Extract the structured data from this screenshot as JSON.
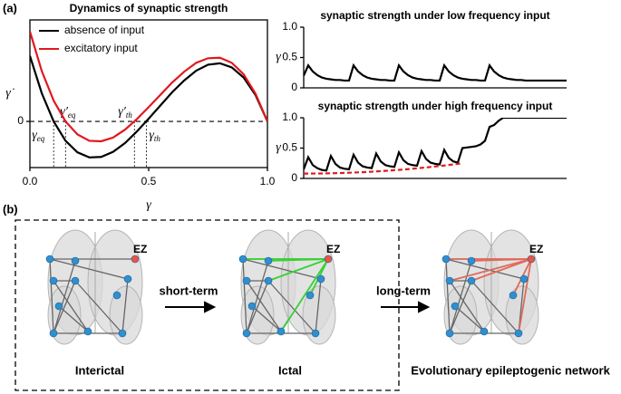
{
  "panel_a_label": "(a)",
  "chart_data": [
    {
      "type": "line",
      "title": "Dynamics of synaptic strength",
      "x_label": "γ",
      "y_label": "γ̇",
      "x": [
        0,
        0.05,
        0.1,
        0.15,
        0.2,
        0.25,
        0.3,
        0.35,
        0.4,
        0.45,
        0.5,
        0.55,
        0.6,
        0.65,
        0.7,
        0.75,
        0.8,
        0.85,
        0.9,
        0.95,
        1
      ],
      "series": [
        {
          "name": "absence of input",
          "color": "#000000",
          "values": [
            1.42,
            0.61,
            0,
            -0.42,
            -0.67,
            -0.78,
            -0.77,
            -0.66,
            -0.47,
            -0.22,
            0.06,
            0.35,
            0.64,
            0.89,
            1.1,
            1.23,
            1.26,
            1.17,
            0.95,
            0.57,
            0
          ]
        },
        {
          "name": "excitatory input",
          "color": "#e0191e",
          "values": [
            1.95,
            1.09,
            0.45,
            0,
            -0.28,
            -0.42,
            -0.43,
            -0.35,
            -0.18,
            0.05,
            0.31,
            0.58,
            0.85,
            1.08,
            1.27,
            1.37,
            1.38,
            1.27,
            1.02,
            0.6,
            0
          ]
        }
      ],
      "xlim": [
        0,
        1
      ],
      "ylim": [
        -1,
        2.2
      ],
      "xticks": [
        {
          "value": 0,
          "label": "0.0"
        },
        0.5,
        {
          "value": 1,
          "label": "1.0"
        }
      ],
      "yticks": [
        0
      ],
      "grid": true,
      "legend": "upper left",
      "annotations": [
        {
          "symbol": "γ",
          "subscript": "eq",
          "x": 0.1
        },
        {
          "symbol": "γ′",
          "subscript": "eq",
          "x": 0.15
        },
        {
          "symbol": "γ′",
          "subscript": "th",
          "x": 0.44
        },
        {
          "symbol": "γ",
          "subscript": "th",
          "x": 0.49
        }
      ]
    },
    {
      "type": "line",
      "title": "synaptic strength under low frequency input",
      "y_label": "γ",
      "x": [
        0,
        1,
        2,
        3,
        4,
        5,
        6,
        7,
        8,
        9,
        10,
        11,
        12,
        13,
        14,
        15,
        16,
        17,
        18,
        19,
        20,
        21,
        22,
        23,
        24,
        25,
        26,
        27,
        28,
        29,
        30,
        31,
        32,
        33,
        34,
        35,
        36,
        37,
        38,
        39,
        40,
        41,
        42,
        43,
        44,
        45,
        46,
        47,
        48,
        49,
        50,
        51,
        52,
        53,
        54,
        55,
        56,
        57,
        58
      ],
      "series": [
        {
          "color": "#000000",
          "values": [
            0.2,
            0.37,
            0.27,
            0.21,
            0.17,
            0.15,
            0.14,
            0.13,
            0.13,
            0.12,
            0.12,
            0.37,
            0.27,
            0.21,
            0.17,
            0.15,
            0.14,
            0.13,
            0.13,
            0.12,
            0.12,
            0.37,
            0.27,
            0.21,
            0.17,
            0.15,
            0.14,
            0.13,
            0.13,
            0.12,
            0.12,
            0.37,
            0.27,
            0.21,
            0.17,
            0.15,
            0.14,
            0.13,
            0.13,
            0.12,
            0.12,
            0.37,
            0.27,
            0.21,
            0.17,
            0.15,
            0.14,
            0.13,
            0.13,
            0.12,
            0.12,
            0.12,
            0.12,
            0.12,
            0.12,
            0.12,
            0.12,
            0.12,
            0.12
          ]
        }
      ],
      "xlim": [
        0,
        58
      ],
      "ylim": [
        0,
        1
      ],
      "yticks": [
        0,
        0.5,
        {
          "value": 1,
          "label": "1.0"
        }
      ],
      "grid": false
    },
    {
      "type": "line",
      "title": "synaptic strength under high frequency input",
      "y_label": "γ",
      "x": [
        0,
        1,
        2,
        3,
        4,
        5,
        6,
        7,
        8,
        9,
        10,
        11,
        12,
        13,
        14,
        15,
        16,
        17,
        18,
        19,
        20,
        21,
        22,
        23,
        24,
        25,
        26,
        27,
        28,
        29,
        30,
        31,
        32,
        33,
        34,
        35,
        36,
        37,
        38,
        39,
        40,
        41,
        42,
        43,
        44,
        45,
        46,
        47,
        48,
        49,
        50,
        51,
        52,
        53,
        54,
        55,
        56,
        57,
        58
      ],
      "series": [
        {
          "color": "#000000",
          "values": [
            0.15,
            0.35,
            0.22,
            0.17,
            0.14,
            0.13,
            0.37,
            0.24,
            0.18,
            0.16,
            0.15,
            0.39,
            0.26,
            0.2,
            0.18,
            0.17,
            0.41,
            0.28,
            0.22,
            0.2,
            0.19,
            0.43,
            0.3,
            0.24,
            0.22,
            0.21,
            0.45,
            0.32,
            0.26,
            0.24,
            0.23,
            0.47,
            0.34,
            0.28,
            0.26,
            0.5,
            0.51,
            0.52,
            0.53,
            0.56,
            0.62,
            0.85,
            0.88,
            0.95,
            1,
            1,
            1,
            1,
            1,
            1,
            1,
            1,
            1,
            1,
            1,
            1,
            1,
            1,
            1
          ]
        },
        {
          "color": "#e0191e",
          "line_style": "dashed",
          "values": [
            0.08,
            0.08,
            0.081,
            0.081,
            0.082,
            0.083,
            0.085,
            0.087,
            0.089,
            0.091,
            0.094,
            0.097,
            0.1,
            0.103,
            0.107,
            0.111,
            0.116,
            0.12,
            0.125,
            0.13,
            0.136,
            0.141,
            0.147,
            0.153,
            0.16,
            0.167,
            0.174,
            0.181,
            0.189,
            0.197,
            0.205,
            0.213,
            0.222,
            0.231,
            0.24,
            0.25,
            null,
            null,
            null,
            null,
            null,
            null,
            null,
            null,
            null,
            null,
            null,
            null,
            null,
            null,
            null,
            null,
            null,
            null,
            null,
            null,
            null,
            null,
            null
          ]
        }
      ],
      "xlim": [
        0,
        58
      ],
      "ylim": [
        0,
        1
      ],
      "yticks": [
        0,
        0.5,
        {
          "value": 1,
          "label": "1.0"
        }
      ],
      "grid": false
    }
  ],
  "panel_b": {
    "label": "(b)",
    "networks": [
      {
        "caption": "Interictal",
        "ez_label": "EZ"
      },
      {
        "caption": "Ictal",
        "ez_label": "EZ"
      },
      {
        "caption": "Evolutionary epileptogenic network",
        "ez_label": "EZ"
      }
    ],
    "arrows": [
      {
        "label": "short-term"
      },
      {
        "label": "long-term"
      }
    ]
  }
}
